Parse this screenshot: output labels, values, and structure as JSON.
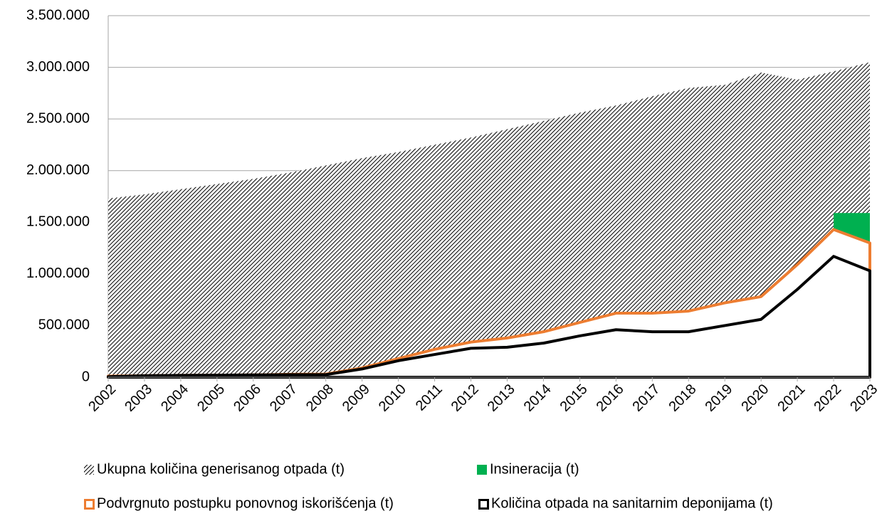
{
  "chart_data": {
    "type": "area",
    "categories": [
      "2002",
      "2003",
      "2004",
      "2005",
      "2006",
      "2007",
      "2008",
      "2009",
      "2010",
      "2011",
      "2012",
      "2013",
      "2014",
      "2015",
      "2016",
      "2017",
      "2018",
      "2019",
      "2020",
      "2021",
      "2022",
      "2023"
    ],
    "series": [
      {
        "name": "Ukupna količina generisanog otpada (t)",
        "color": "#000000",
        "style": "hatch",
        "values": [
          1730000,
          1770000,
          1820000,
          1870000,
          1920000,
          1980000,
          2050000,
          2120000,
          2180000,
          2250000,
          2320000,
          2400000,
          2480000,
          2560000,
          2630000,
          2720000,
          2800000,
          2830000,
          2950000,
          2880000,
          2960000,
          3050000
        ]
      },
      {
        "name": "Insineracija (t)",
        "color": "#00b050",
        "style": "fill",
        "values": [
          null,
          null,
          null,
          null,
          null,
          null,
          null,
          null,
          null,
          null,
          null,
          null,
          null,
          null,
          null,
          null,
          null,
          null,
          null,
          null,
          1590000,
          1590000
        ]
      },
      {
        "name": "Podvrgnuto postupku ponovnog iskorišćenja (t)",
        "color": "#ed7d31",
        "style": "outline",
        "values": [
          10000,
          15000,
          18000,
          20000,
          22000,
          28000,
          30000,
          90000,
          180000,
          270000,
          340000,
          380000,
          440000,
          530000,
          620000,
          620000,
          640000,
          720000,
          780000,
          1090000,
          1430000,
          1300000
        ]
      },
      {
        "name": "Količina otpada na sanitarnim deponijama (t)",
        "color": "#000000",
        "style": "outline",
        "values": [
          5000,
          15000,
          18000,
          20000,
          22000,
          25000,
          25000,
          80000,
          160000,
          220000,
          280000,
          290000,
          330000,
          400000,
          460000,
          440000,
          440000,
          500000,
          560000,
          850000,
          1170000,
          1030000
        ]
      }
    ],
    "ylim": [
      0,
      3500000
    ],
    "yticks": [
      0,
      {
        "value": 500000,
        "label": "500.000"
      },
      {
        "value": 1000000,
        "label": "1.000.000"
      },
      {
        "value": 1500000,
        "label": "1.500.000"
      },
      {
        "value": 2000000,
        "label": "2.000.000"
      },
      {
        "value": 2500000,
        "label": "2.500.000"
      },
      {
        "value": 3000000,
        "label": "3.000.000"
      },
      {
        "value": 3500000,
        "label": "3.500.000"
      }
    ],
    "grid": true
  }
}
